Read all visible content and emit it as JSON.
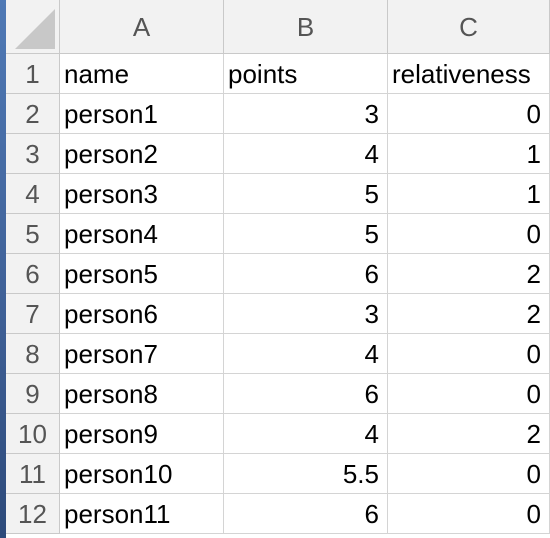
{
  "columns": [
    "A",
    "B",
    "C"
  ],
  "rows": [
    {
      "n": "1",
      "a": "name",
      "b": "points",
      "c": "relativeness"
    },
    {
      "n": "2",
      "a": "person1",
      "b": "3",
      "c": "0"
    },
    {
      "n": "3",
      "a": "person2",
      "b": "4",
      "c": "1"
    },
    {
      "n": "4",
      "a": "person3",
      "b": "5",
      "c": "1"
    },
    {
      "n": "5",
      "a": "person4",
      "b": "5",
      "c": "0"
    },
    {
      "n": "6",
      "a": "person5",
      "b": "6",
      "c": "2"
    },
    {
      "n": "7",
      "a": "person6",
      "b": "3",
      "c": "2"
    },
    {
      "n": "8",
      "a": "person7",
      "b": "4",
      "c": "0"
    },
    {
      "n": "9",
      "a": "person8",
      "b": "6",
      "c": "0"
    },
    {
      "n": "10",
      "a": "person9",
      "b": "4",
      "c": "2"
    },
    {
      "n": "11",
      "a": "person10",
      "b": "5.5",
      "c": "0"
    },
    {
      "n": "12",
      "a": "person11",
      "b": "6",
      "c": "0"
    }
  ],
  "colors": {
    "header_bg": "#f2f2f2",
    "grid_line": "#d4d4d4"
  }
}
